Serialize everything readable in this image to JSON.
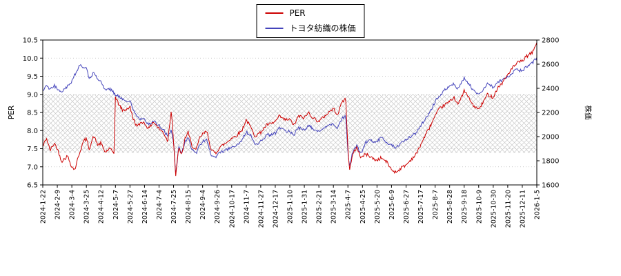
{
  "chart_data": {
    "type": "line",
    "title": "",
    "x_labels": [
      "2024-1-22",
      "2024-2-9",
      "2024-3-4",
      "2024-3-25",
      "2024-4-12",
      "2024-5-7",
      "2024-5-27",
      "2024-6-14",
      "2024-7-4",
      "2024-7-25",
      "2024-8-15",
      "2024-9-4",
      "2024-9-26",
      "2024-10-17",
      "2024-11-7",
      "2024-11-27",
      "2024-12-17",
      "2025-1-10",
      "2025-1-31",
      "2025-2-21",
      "2025-3-14",
      "2025-4-7",
      "2025-4-25",
      "2025-5-20",
      "2025-6-9",
      "2025-6-27",
      "2025-7-17",
      "2025-8-7",
      "2025-8-28",
      "2025-9-18",
      "2025-10-9",
      "2025-10-30",
      "2025-11-20",
      "2025-12-11",
      "2026-1-5"
    ],
    "left_axis": {
      "label": "PER",
      "min": 6.5,
      "max": 10.5,
      "ticks": [
        6.5,
        7.0,
        7.5,
        8.0,
        8.5,
        9.0,
        9.5,
        10.0,
        10.5
      ],
      "tick_labels": [
        "6.5",
        "7.0",
        "7.5",
        "8.0",
        "8.5",
        "9.0",
        "9.5",
        "10.0",
        "10.5"
      ]
    },
    "right_axis": {
      "label": "株価",
      "min": 1600,
      "max": 2800,
      "ticks": [
        1600,
        1800,
        2000,
        2200,
        2400,
        2600,
        2800
      ],
      "tick_labels": [
        "1600",
        "1800",
        "2000",
        "2200",
        "2400",
        "2600",
        "2800"
      ]
    },
    "band": {
      "from": 7.38,
      "to": 9.0,
      "style": "crosshatch"
    },
    "grid": "dotted-horizontal",
    "legend_position": "top-center",
    "series": [
      {
        "name": "PER",
        "axis": "left",
        "color": "#cc0000",
        "points": [
          [
            0,
            7.55
          ],
          [
            0.25,
            7.8
          ],
          [
            0.5,
            7.45
          ],
          [
            0.8,
            7.65
          ],
          [
            1,
            7.5
          ],
          [
            1.3,
            7.15
          ],
          [
            1.7,
            7.3
          ],
          [
            2,
            7.0
          ],
          [
            2.2,
            6.92
          ],
          [
            2.5,
            7.35
          ],
          [
            2.8,
            7.7
          ],
          [
            3,
            7.78
          ],
          [
            3.2,
            7.5
          ],
          [
            3.5,
            7.85
          ],
          [
            3.8,
            7.6
          ],
          [
            4,
            7.65
          ],
          [
            4.3,
            7.4
          ],
          [
            4.6,
            7.5
          ],
          [
            4.9,
            7.38
          ],
          [
            5,
            8.92
          ],
          [
            5.2,
            8.75
          ],
          [
            5.5,
            8.55
          ],
          [
            5.8,
            8.6
          ],
          [
            6,
            8.65
          ],
          [
            6.2,
            8.35
          ],
          [
            6.5,
            8.1
          ],
          [
            6.8,
            8.25
          ],
          [
            7,
            8.2
          ],
          [
            7.3,
            8.05
          ],
          [
            7.6,
            8.25
          ],
          [
            8,
            8.05
          ],
          [
            8.3,
            7.95
          ],
          [
            8.6,
            7.7
          ],
          [
            8.85,
            8.6
          ],
          [
            9,
            7.7
          ],
          [
            9.15,
            6.72
          ],
          [
            9.35,
            7.55
          ],
          [
            9.55,
            7.3
          ],
          [
            9.8,
            7.8
          ],
          [
            10,
            7.95
          ],
          [
            10.25,
            7.6
          ],
          [
            10.55,
            7.45
          ],
          [
            10.8,
            7.8
          ],
          [
            11,
            7.9
          ],
          [
            11.3,
            7.98
          ],
          [
            11.6,
            7.45
          ],
          [
            11.9,
            7.38
          ],
          [
            12.2,
            7.55
          ],
          [
            12.6,
            7.65
          ],
          [
            13,
            7.8
          ],
          [
            13.3,
            7.85
          ],
          [
            13.7,
            8.0
          ],
          [
            14,
            8.3
          ],
          [
            14.3,
            8.1
          ],
          [
            14.6,
            7.85
          ],
          [
            15,
            7.95
          ],
          [
            15.4,
            8.15
          ],
          [
            15.8,
            8.2
          ],
          [
            16,
            8.25
          ],
          [
            16.3,
            8.4
          ],
          [
            16.6,
            8.3
          ],
          [
            17,
            8.3
          ],
          [
            17.3,
            8.15
          ],
          [
            17.6,
            8.4
          ],
          [
            18,
            8.35
          ],
          [
            18.3,
            8.5
          ],
          [
            18.6,
            8.35
          ],
          [
            19,
            8.25
          ],
          [
            19.4,
            8.4
          ],
          [
            19.8,
            8.55
          ],
          [
            20,
            8.6
          ],
          [
            20.3,
            8.45
          ],
          [
            20.6,
            8.8
          ],
          [
            20.85,
            8.88
          ],
          [
            21,
            7.45
          ],
          [
            21.12,
            6.95
          ],
          [
            21.35,
            7.35
          ],
          [
            21.6,
            7.55
          ],
          [
            21.9,
            7.25
          ],
          [
            22.2,
            7.35
          ],
          [
            22.5,
            7.3
          ],
          [
            22.8,
            7.2
          ],
          [
            23,
            7.18
          ],
          [
            23.3,
            7.25
          ],
          [
            23.7,
            7.12
          ],
          [
            24,
            6.92
          ],
          [
            24.3,
            6.85
          ],
          [
            24.7,
            6.98
          ],
          [
            25,
            7.05
          ],
          [
            25.3,
            7.18
          ],
          [
            25.7,
            7.35
          ],
          [
            26,
            7.6
          ],
          [
            26.3,
            7.85
          ],
          [
            26.7,
            8.15
          ],
          [
            27,
            8.4
          ],
          [
            27.3,
            8.6
          ],
          [
            27.7,
            8.72
          ],
          [
            28,
            8.8
          ],
          [
            28.3,
            8.92
          ],
          [
            28.6,
            8.72
          ],
          [
            29,
            9.1
          ],
          [
            29.3,
            8.92
          ],
          [
            29.6,
            8.7
          ],
          [
            30,
            8.58
          ],
          [
            30.3,
            8.78
          ],
          [
            30.6,
            9.0
          ],
          [
            31,
            8.92
          ],
          [
            31.3,
            9.18
          ],
          [
            31.6,
            9.3
          ],
          [
            32,
            9.55
          ],
          [
            32.3,
            9.72
          ],
          [
            32.7,
            9.88
          ],
          [
            33,
            9.92
          ],
          [
            33.3,
            10.05
          ],
          [
            33.7,
            10.15
          ],
          [
            34,
            10.45
          ]
        ]
      },
      {
        "name": "トヨタ紡織の株価",
        "axis": "right",
        "color": "#4444bb",
        "points": [
          [
            0,
            2380
          ],
          [
            0.25,
            2430
          ],
          [
            0.5,
            2390
          ],
          [
            0.8,
            2420
          ],
          [
            1,
            2400
          ],
          [
            1.3,
            2370
          ],
          [
            1.7,
            2420
          ],
          [
            2,
            2460
          ],
          [
            2.3,
            2540
          ],
          [
            2.6,
            2600
          ],
          [
            2.8,
            2570
          ],
          [
            3,
            2560
          ],
          [
            3.2,
            2480
          ],
          [
            3.5,
            2530
          ],
          [
            3.8,
            2470
          ],
          [
            4,
            2450
          ],
          [
            4.3,
            2390
          ],
          [
            4.6,
            2400
          ],
          [
            4.9,
            2360
          ],
          [
            5,
            2350
          ],
          [
            5.3,
            2330
          ],
          [
            5.6,
            2310
          ],
          [
            6,
            2290
          ],
          [
            6.3,
            2210
          ],
          [
            6.6,
            2150
          ],
          [
            7,
            2140
          ],
          [
            7.3,
            2100
          ],
          [
            7.6,
            2130
          ],
          [
            8,
            2090
          ],
          [
            8.3,
            2060
          ],
          [
            8.6,
            2000
          ],
          [
            8.85,
            2060
          ],
          [
            9,
            1960
          ],
          [
            9.15,
            1680
          ],
          [
            9.35,
            1910
          ],
          [
            9.55,
            1870
          ],
          [
            9.8,
            1960
          ],
          [
            10,
            1990
          ],
          [
            10.25,
            1900
          ],
          [
            10.55,
            1860
          ],
          [
            10.8,
            1930
          ],
          [
            11,
            1960
          ],
          [
            11.3,
            1970
          ],
          [
            11.6,
            1840
          ],
          [
            11.9,
            1830
          ],
          [
            12.2,
            1870
          ],
          [
            12.6,
            1890
          ],
          [
            13,
            1910
          ],
          [
            13.3,
            1930
          ],
          [
            13.7,
            1970
          ],
          [
            14,
            2040
          ],
          [
            14.3,
            2010
          ],
          [
            14.6,
            1930
          ],
          [
            15,
            1960
          ],
          [
            15.4,
            2010
          ],
          [
            15.8,
            2020
          ],
          [
            16,
            2030
          ],
          [
            16.3,
            2070
          ],
          [
            16.6,
            2050
          ],
          [
            17,
            2040
          ],
          [
            17.3,
            2020
          ],
          [
            17.6,
            2070
          ],
          [
            18,
            2060
          ],
          [
            18.3,
            2090
          ],
          [
            18.6,
            2070
          ],
          [
            19,
            2040
          ],
          [
            19.4,
            2070
          ],
          [
            19.8,
            2100
          ],
          [
            20,
            2110
          ],
          [
            20.3,
            2070
          ],
          [
            20.6,
            2150
          ],
          [
            20.85,
            2170
          ],
          [
            21,
            1850
          ],
          [
            21.12,
            1760
          ],
          [
            21.35,
            1880
          ],
          [
            21.6,
            1920
          ],
          [
            21.9,
            1860
          ],
          [
            22.2,
            1950
          ],
          [
            22.5,
            1970
          ],
          [
            22.8,
            1950
          ],
          [
            23,
            1960
          ],
          [
            23.3,
            1990
          ],
          [
            23.7,
            1950
          ],
          [
            24,
            1930
          ],
          [
            24.3,
            1910
          ],
          [
            24.7,
            1950
          ],
          [
            25,
            1970
          ],
          [
            25.3,
            2000
          ],
          [
            25.7,
            2030
          ],
          [
            26,
            2090
          ],
          [
            26.3,
            2140
          ],
          [
            26.7,
            2220
          ],
          [
            27,
            2290
          ],
          [
            27.3,
            2340
          ],
          [
            27.7,
            2390
          ],
          [
            28,
            2410
          ],
          [
            28.3,
            2440
          ],
          [
            28.6,
            2390
          ],
          [
            29,
            2490
          ],
          [
            29.3,
            2440
          ],
          [
            29.6,
            2390
          ],
          [
            30,
            2350
          ],
          [
            30.3,
            2390
          ],
          [
            30.6,
            2440
          ],
          [
            31,
            2410
          ],
          [
            31.3,
            2450
          ],
          [
            31.6,
            2470
          ],
          [
            32,
            2490
          ],
          [
            32.3,
            2530
          ],
          [
            32.6,
            2560
          ],
          [
            33,
            2540
          ],
          [
            33.3,
            2580
          ],
          [
            33.7,
            2610
          ],
          [
            34,
            2650
          ]
        ]
      }
    ]
  }
}
